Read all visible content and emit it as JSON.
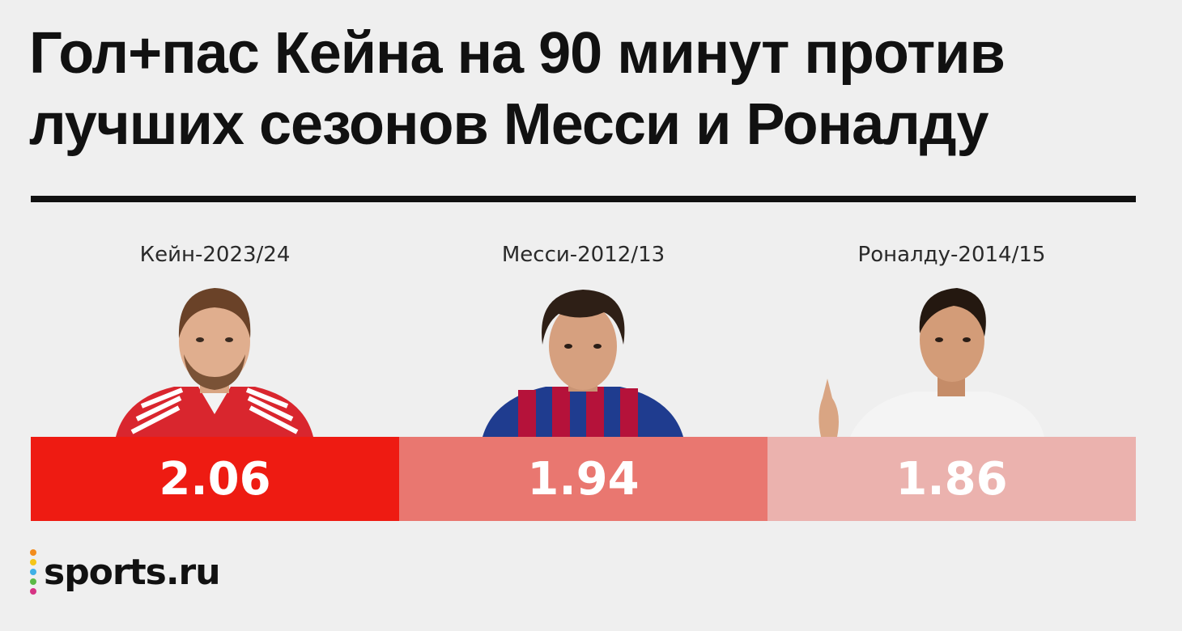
{
  "chart_data": {
    "type": "bar",
    "title": "Гол+пас Кейна на 90 минут против лучших сезонов Месси и Роналду",
    "categories": [
      "Кейн-2023/24",
      "Месси-2012/13",
      "Роналду-2014/15"
    ],
    "values": [
      2.06,
      1.94,
      1.86
    ],
    "value_labels": [
      "2.06",
      "1.94",
      "1.86"
    ],
    "bar_colors": [
      "#ee1b12",
      "#e97770",
      "#ebb2ae"
    ]
  },
  "players": [
    {
      "photo_icon": "harry-kane-portrait-icon",
      "kit_color": "#d9262e"
    },
    {
      "photo_icon": "lionel-messi-portrait-icon",
      "kit_color": "#b5123a"
    },
    {
      "photo_icon": "cristiano-ronaldo-portrait-icon",
      "kit_color": "#f4f4f4"
    }
  ],
  "footer": {
    "logo_text": "sports.ru"
  },
  "colors": {
    "background": "#efefef",
    "text": "#111111"
  }
}
